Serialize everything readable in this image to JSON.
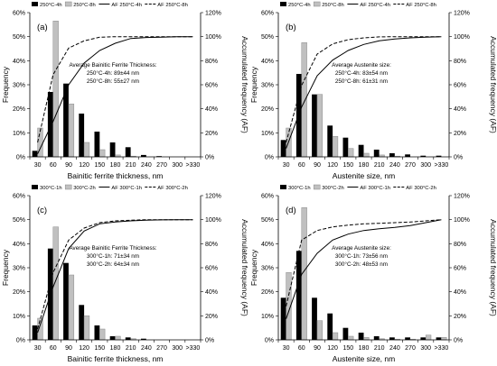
{
  "chart_data": [
    {
      "type": "bar",
      "panel_label": "(a)",
      "categories": [
        "30",
        "60",
        "90",
        "120",
        "150",
        "180",
        "210",
        "240",
        "270",
        "300",
        ">330"
      ],
      "series": [
        {
          "name": "250°C-4h",
          "values": [
            2.5,
            27,
            30.5,
            18,
            10.5,
            6,
            4,
            0.8,
            0.3,
            0,
            0
          ],
          "color": "#000000"
        },
        {
          "name": "250°C-8h",
          "values": [
            12,
            56.5,
            22,
            6,
            3,
            0.8,
            0.3,
            0,
            0,
            0,
            0
          ],
          "color": "#c0c0c0"
        }
      ],
      "line_series": [
        {
          "name": "AF 250°C-4h",
          "values": [
            2.5,
            29.5,
            60,
            78,
            88.5,
            94.5,
            98.5,
            99.3,
            99.6,
            100,
            100
          ],
          "style": "solid"
        },
        {
          "name": "AF 250°C-8h",
          "values": [
            12,
            68.5,
            90.5,
            96.5,
            99.5,
            100,
            100,
            100,
            100,
            100,
            100
          ],
          "style": "dashed"
        }
      ],
      "annotation": [
        "Average Bainitic Ferrite Thickness:",
        "250°C-4h: 89±44 nm",
        "250°C-8h: 55±27 nm"
      ],
      "xlabel": "Bainitic ferrite thickness, nm",
      "ylabel": "Frequency",
      "y2label": "Accumulated frequency (AF)",
      "ylim": [
        0,
        60
      ],
      "yticks": [
        "0%",
        "10%",
        "20%",
        "30%",
        "40%",
        "50%",
        "60%"
      ],
      "y2lim": [
        0,
        120
      ],
      "y2ticks": [
        "0%",
        "20%",
        "40%",
        "60%",
        "80%",
        "100%",
        "120%"
      ],
      "legend_position": "top",
      "grid": false
    },
    {
      "type": "bar",
      "panel_label": "(b)",
      "categories": [
        "30",
        "60",
        "90",
        "120",
        "150",
        "180",
        "210",
        "240",
        "270",
        "300",
        ">330"
      ],
      "series": [
        {
          "name": "250°C-4h",
          "values": [
            7,
            34.5,
            26,
            13,
            8,
            5,
            3,
            1.5,
            1,
            0.5,
            0.5
          ],
          "color": "#000000"
        },
        {
          "name": "250°C-8h",
          "values": [
            12,
            47.5,
            26,
            8.5,
            3.5,
            1.5,
            0.8,
            0.3,
            0,
            0,
            0
          ],
          "color": "#c0c0c0"
        }
      ],
      "line_series": [
        {
          "name": "AF 250°C-4h",
          "values": [
            7,
            41.5,
            67.5,
            80.5,
            88.5,
            93.5,
            96.5,
            98,
            99,
            99.5,
            100
          ],
          "style": "solid"
        },
        {
          "name": "AF 250°C-8h",
          "values": [
            12,
            59.5,
            85.5,
            94,
            97.5,
            99,
            99.8,
            100,
            100,
            100,
            100
          ],
          "style": "dashed"
        }
      ],
      "annotation": [
        "Average Austenite size:",
        "250°C-4h: 83±54 nm",
        "250°C-8h: 61±31 nm"
      ],
      "xlabel": "Austenite size, nm",
      "ylabel": "Frequency",
      "y2label": "Accumulated frequency (AF)",
      "ylim": [
        0,
        60
      ],
      "yticks": [
        "0%",
        "10%",
        "20%",
        "30%",
        "40%",
        "50%",
        "60%"
      ],
      "y2lim": [
        0,
        120
      ],
      "y2ticks": [
        "0%",
        "20%",
        "40%",
        "60%",
        "80%",
        "100%",
        "120%"
      ],
      "legend_position": "top",
      "grid": false
    },
    {
      "type": "bar",
      "panel_label": "(c)",
      "categories": [
        "30",
        "60",
        "90",
        "120",
        "150",
        "180",
        "210",
        "240",
        "270",
        "300",
        ">330"
      ],
      "series": [
        {
          "name": "300°C-1h",
          "values": [
            6,
            38,
            32,
            14.5,
            6,
            1.5,
            1,
            0.5,
            0,
            0,
            0
          ],
          "color": "#000000"
        },
        {
          "name": "300°C-2h",
          "values": [
            9,
            47,
            27,
            10,
            4.5,
            1.5,
            0.5,
            0,
            0,
            0,
            0
          ],
          "color": "#c0c0c0"
        }
      ],
      "line_series": [
        {
          "name": "AF 300°C-1h",
          "values": [
            6,
            44,
            76,
            90.5,
            96.5,
            98,
            99,
            99.5,
            99.8,
            100,
            100
          ],
          "style": "solid"
        },
        {
          "name": "AF 300°C-2h",
          "values": [
            9,
            56,
            83,
            93,
            97.5,
            99,
            99.5,
            100,
            100,
            100,
            100
          ],
          "style": "dashed"
        }
      ],
      "annotation": [
        "Average Bainitic Ferrite Thickness:",
        "300°C-1h: 71±34 nm",
        "300°C-2h: 64±34 nm"
      ],
      "xlabel": "Bainitic ferrite thickness, nm",
      "ylabel": "Frequency",
      "y2label": "Accumulated frequency (AF)",
      "ylim": [
        0,
        60
      ],
      "yticks": [
        "0%",
        "10%",
        "20%",
        "30%",
        "40%",
        "50%",
        "60%"
      ],
      "y2lim": [
        0,
        120
      ],
      "y2ticks": [
        "0%",
        "20%",
        "40%",
        "60%",
        "80%",
        "100%",
        "120%"
      ],
      "legend_position": "top",
      "grid": false
    },
    {
      "type": "bar",
      "panel_label": "(d)",
      "categories": [
        "30",
        "60",
        "90",
        "120",
        "150",
        "180",
        "210",
        "240",
        "270",
        "300",
        ">330"
      ],
      "series": [
        {
          "name": "300°C-1h",
          "values": [
            17.5,
            37,
            17.5,
            11,
            5,
            3,
            1.5,
            1,
            1,
            1,
            1
          ],
          "color": "#000000"
        },
        {
          "name": "300°C-2h",
          "values": [
            28,
            55,
            8,
            3,
            1.5,
            1,
            0.5,
            0.3,
            0.3,
            2,
            1
          ],
          "color": "#c0c0c0"
        }
      ],
      "line_series": [
        {
          "name": "AF 300°C-1h",
          "values": [
            17.5,
            54.5,
            72,
            83,
            88,
            91,
            92.5,
            93.5,
            95,
            97.5,
            100
          ],
          "style": "solid"
        },
        {
          "name": "AF 300°C-2h",
          "values": [
            28,
            83,
            91,
            94,
            95.5,
            96.5,
            97,
            97.5,
            98,
            99,
            100
          ],
          "style": "dashed"
        }
      ],
      "annotation": [
        "Average Austenite size:",
        "300°C-1h: 73±56 nm",
        "300°C-2h: 48±53 nm"
      ],
      "xlabel": "Austenite size, nm",
      "ylabel": "Frequency",
      "y2label": "Accumulated frequency (AF)",
      "ylim": [
        0,
        60
      ],
      "yticks": [
        "0%",
        "10%",
        "20%",
        "30%",
        "40%",
        "50%",
        "60%"
      ],
      "y2lim": [
        0,
        120
      ],
      "y2ticks": [
        "0%",
        "20%",
        "40%",
        "60%",
        "80%",
        "100%",
        "120%"
      ],
      "legend_position": "top",
      "grid": false
    }
  ]
}
